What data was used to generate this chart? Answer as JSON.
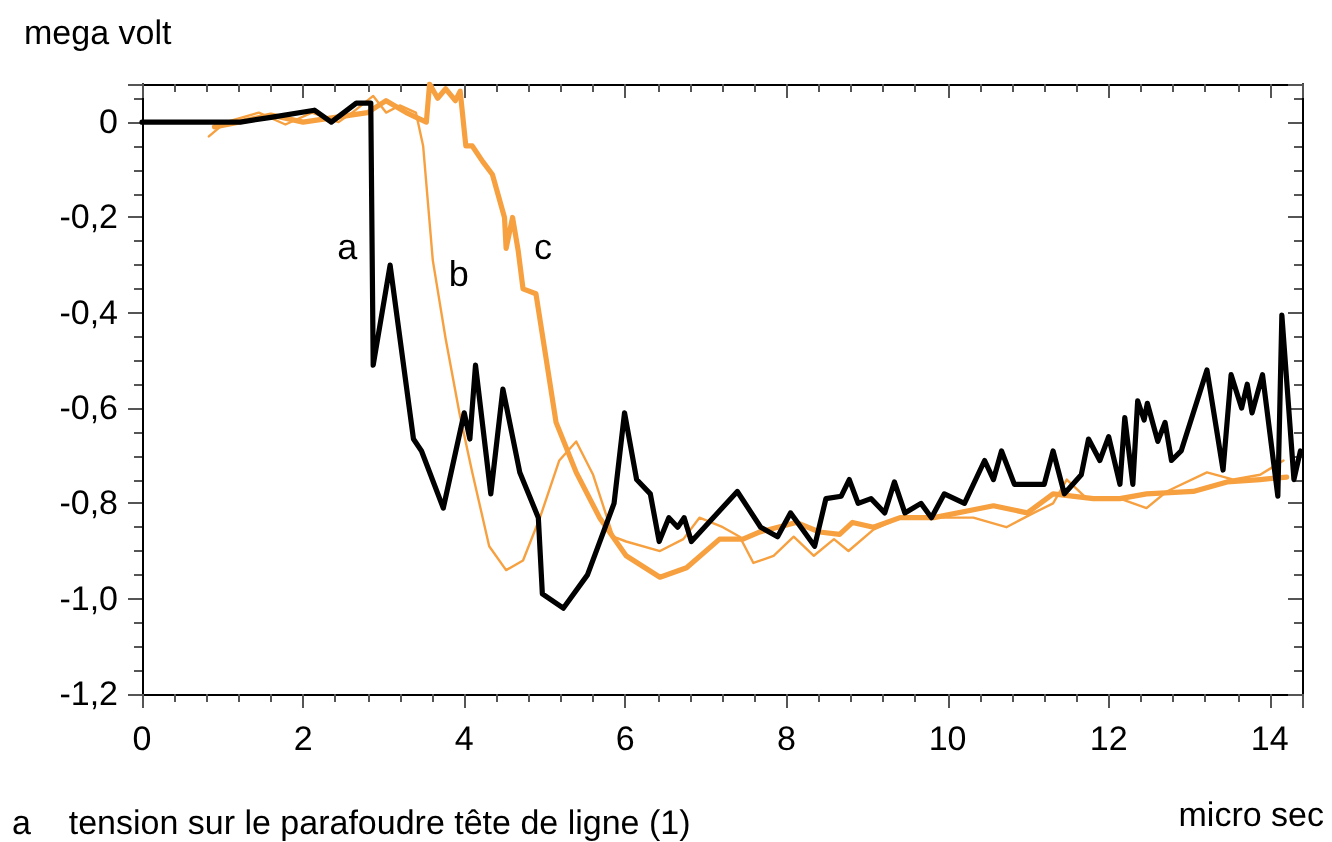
{
  "chart_data": {
    "type": "line",
    "ylabel": "mega volt",
    "xlabel": "micro sec",
    "xlim": [
      0,
      14.4
    ],
    "xticks": [
      0,
      2,
      4,
      6,
      8,
      10,
      12,
      14
    ],
    "ylim": [
      -1.2,
      0.08
    ],
    "yticks": [
      {
        "value": -1.2,
        "label": "-1,2"
      },
      {
        "value": -1,
        "label": "-1,0"
      },
      {
        "value": -0.8,
        "label": "-0,8"
      },
      {
        "value": -0.6,
        "label": "-0,6"
      },
      {
        "value": -0.4,
        "label": "-0,4"
      },
      {
        "value": -0.2,
        "label": "-0,2"
      },
      0
    ],
    "grid": false,
    "marker": "none",
    "line_style": "solid",
    "series": [
      {
        "name": "a",
        "color": "#000000",
        "x": [
          0,
          1.22,
          1.6,
          2.14,
          2.35,
          2.66,
          2.84,
          2.87,
          3.08,
          3.37,
          3.47,
          3.74,
          4.0,
          4.07,
          4.14,
          4.33,
          4.48,
          4.69,
          4.92,
          4.97,
          5.23,
          5.53,
          5.86,
          5.99,
          6.14,
          6.31,
          6.42,
          6.54,
          6.65,
          6.73,
          6.82,
          7.39,
          7.68,
          7.89,
          8.05,
          8.18,
          8.35,
          8.49,
          8.68,
          8.78,
          8.89,
          9.05,
          9.22,
          9.34,
          9.47,
          9.67,
          9.8,
          9.96,
          10.21,
          10.46,
          10.57,
          10.67,
          10.83,
          11.2,
          11.31,
          11.45,
          11.66,
          11.75,
          11.89,
          12.0,
          12.14,
          12.2,
          12.3,
          12.36,
          12.44,
          12.48,
          12.61,
          12.7,
          12.78,
          12.9,
          13.22,
          13.42,
          13.52,
          13.65,
          13.72,
          13.78,
          13.91,
          14.1,
          14.15,
          14.3,
          14.38
        ],
        "values": [
          0,
          0,
          0.01,
          0.025,
          0.0,
          0.04,
          0.04,
          -0.51,
          -0.3,
          -0.665,
          -0.69,
          -0.81,
          -0.61,
          -0.665,
          -0.51,
          -0.78,
          -0.56,
          -0.735,
          -0.83,
          -0.99,
          -1.02,
          -0.95,
          -0.8,
          -0.61,
          -0.75,
          -0.78,
          -0.88,
          -0.83,
          -0.85,
          -0.83,
          -0.88,
          -0.775,
          -0.85,
          -0.87,
          -0.82,
          -0.85,
          -0.89,
          -0.79,
          -0.785,
          -0.75,
          -0.8,
          -0.79,
          -0.82,
          -0.755,
          -0.82,
          -0.8,
          -0.83,
          -0.78,
          -0.8,
          -0.71,
          -0.75,
          -0.69,
          -0.76,
          -0.76,
          -0.69,
          -0.78,
          -0.74,
          -0.665,
          -0.71,
          -0.66,
          -0.76,
          -0.62,
          -0.76,
          -0.585,
          -0.625,
          -0.59,
          -0.67,
          -0.63,
          -0.71,
          -0.69,
          -0.52,
          -0.73,
          -0.53,
          -0.6,
          -0.55,
          -0.61,
          -0.53,
          -0.785,
          -0.405,
          -0.75,
          -0.69
        ]
      },
      {
        "name": "b",
        "color": "#f7a040",
        "x": [
          0.83,
          1.04,
          1.45,
          1.78,
          2.11,
          2.44,
          2.61,
          2.87,
          3.03,
          3.2,
          3.4,
          3.49,
          3.61,
          3.77,
          3.94,
          4.1,
          4.31,
          4.52,
          4.73,
          4.94,
          5.18,
          5.39,
          5.6,
          5.85,
          6.01,
          6.43,
          6.72,
          6.92,
          7.21,
          7.42,
          7.59,
          7.84,
          8.09,
          8.34,
          8.59,
          8.77,
          9.08,
          9.41,
          9.83,
          10.32,
          10.73,
          11.07,
          11.31,
          11.48,
          11.73,
          12.14,
          12.47,
          12.72,
          13.22,
          13.55,
          13.88,
          14.17
        ],
        "values": [
          -0.03,
          0.0,
          0.02,
          -0.005,
          0.02,
          0.0,
          0.02,
          0.055,
          0.02,
          0.035,
          0.02,
          -0.05,
          -0.29,
          -0.455,
          -0.61,
          -0.735,
          -0.89,
          -0.94,
          -0.92,
          -0.83,
          -0.71,
          -0.67,
          -0.74,
          -0.87,
          -0.88,
          -0.9,
          -0.875,
          -0.83,
          -0.85,
          -0.87,
          -0.925,
          -0.91,
          -0.87,
          -0.91,
          -0.875,
          -0.9,
          -0.855,
          -0.83,
          -0.83,
          -0.83,
          -0.85,
          -0.82,
          -0.8,
          -0.75,
          -0.79,
          -0.79,
          -0.81,
          -0.775,
          -0.735,
          -0.75,
          -0.74,
          -0.71
        ]
      },
      {
        "name": "c",
        "color": "#f7a040",
        "x": [
          0.9,
          1.2,
          1.6,
          2.0,
          2.4,
          2.8,
          3.03,
          3.28,
          3.53,
          3.57,
          3.67,
          3.77,
          3.89,
          3.95,
          4.02,
          4.1,
          4.23,
          4.35,
          4.5,
          4.52,
          4.6,
          4.67,
          4.73,
          4.89,
          5.02,
          5.14,
          5.39,
          5.68,
          6.01,
          6.43,
          6.76,
          7.17,
          7.46,
          7.67,
          8.12,
          8.41,
          8.66,
          8.82,
          9.08,
          9.41,
          9.83,
          10.57,
          10.99,
          11.31,
          11.81,
          12.14,
          12.47,
          13.05,
          13.47,
          13.88,
          14.21
        ],
        "values": [
          -0.01,
          0.0,
          0.015,
          0.0,
          0.01,
          0.02,
          0.045,
          0.02,
          0.0,
          0.08,
          0.05,
          0.07,
          0.045,
          0.065,
          -0.05,
          -0.05,
          -0.083,
          -0.11,
          -0.2,
          -0.265,
          -0.2,
          -0.27,
          -0.35,
          -0.36,
          -0.5,
          -0.63,
          -0.735,
          -0.83,
          -0.91,
          -0.955,
          -0.935,
          -0.875,
          -0.875,
          -0.86,
          -0.84,
          -0.86,
          -0.865,
          -0.84,
          -0.85,
          -0.83,
          -0.83,
          -0.805,
          -0.82,
          -0.78,
          -0.79,
          -0.79,
          -0.78,
          -0.775,
          -0.755,
          -0.75,
          -0.745
        ]
      }
    ],
    "annotations": [
      "a    tension sur le parafoudre tête de ligne (1)"
    ]
  }
}
